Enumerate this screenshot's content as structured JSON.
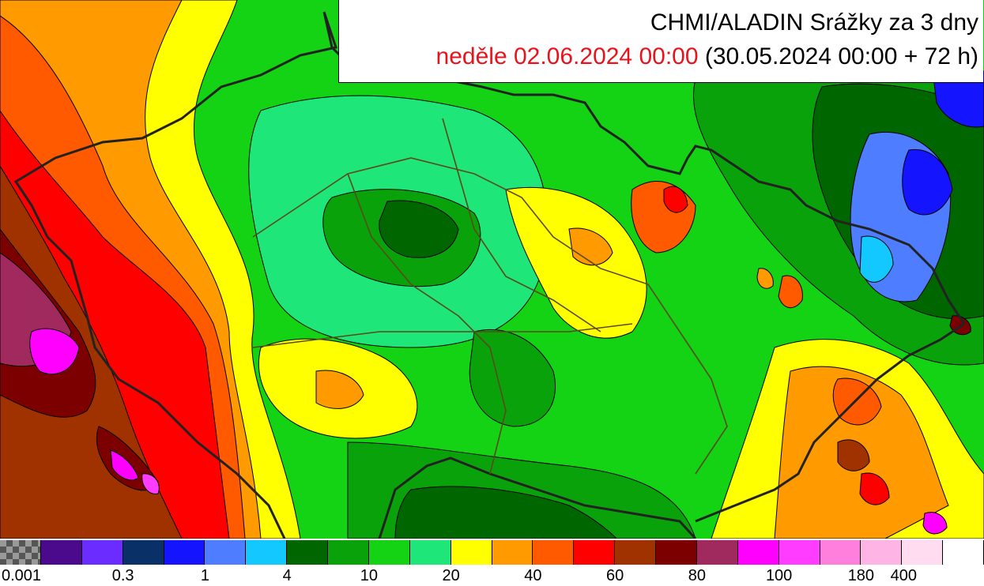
{
  "title": {
    "product": "CHMI/ALADIN Srážky za 3 dny",
    "valid_time": "neděle 02.06.2024 00:00",
    "run_info": "(30.05.2024 00:00 + 72 h)",
    "valid_color": "#e8141c"
  },
  "legend": {
    "swatch_colors": [
      "#777777",
      "#4b0a8c",
      "#6a2cff",
      "#0a3068",
      "#1414ff",
      "#4f7dff",
      "#12c8ff",
      "#006600",
      "#0aa20a",
      "#14d214",
      "#1ee678",
      "#ffff00",
      "#ff9a00",
      "#ff5a00",
      "#ff0000",
      "#a03200",
      "#7d0000",
      "#a02a5e",
      "#ff00ff",
      "#ff3cff",
      "#ff80dc",
      "#ffb4e6",
      "#ffdcf0",
      "#ffffff"
    ],
    "tick_labels": [
      {
        "label": "0.001",
        "after_swatch": 0
      },
      {
        "label": "0.3",
        "after_swatch": 2
      },
      {
        "label": "1",
        "after_swatch": 4
      },
      {
        "label": "4",
        "after_swatch": 6
      },
      {
        "label": "10",
        "after_swatch": 8
      },
      {
        "label": "20",
        "after_swatch": 10
      },
      {
        "label": "40",
        "after_swatch": 12
      },
      {
        "label": "60",
        "after_swatch": 14
      },
      {
        "label": "80",
        "after_swatch": 16
      },
      {
        "label": "100",
        "after_swatch": 18
      },
      {
        "label": "180",
        "after_swatch": 20
      },
      {
        "label": "400",
        "after_swatch": 22
      }
    ]
  }
}
